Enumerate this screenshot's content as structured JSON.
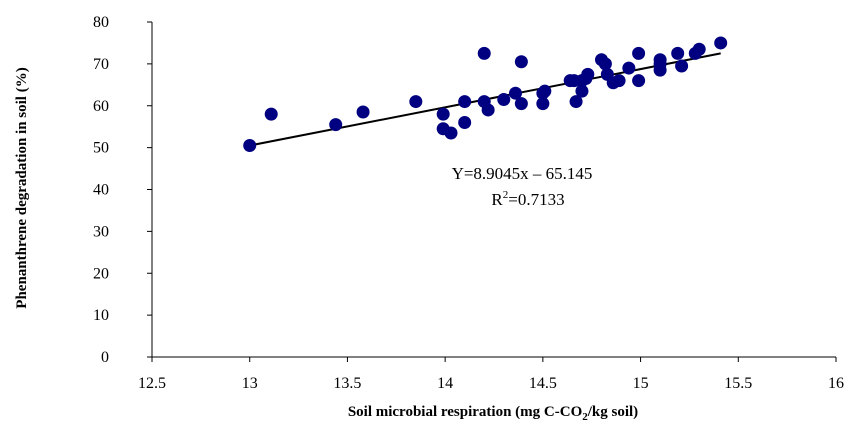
{
  "chart_data": {
    "type": "scatter",
    "title": "",
    "xlabel": "Soil microbial respiration (mg C-CO2/kg soil)",
    "xlabel_parts": {
      "before": "Soil microbial respiration (mg C-CO",
      "sub": "2",
      "after": "/kg soil)"
    },
    "ylabel": "Phenanthrene degradation in soil (%)",
    "xlim": [
      12.5,
      16
    ],
    "ylim": [
      0,
      80
    ],
    "x_ticks": [
      "12.5",
      "13",
      "13.5",
      "14",
      "14.5",
      "15",
      "15.5",
      "16"
    ],
    "y_ticks": [
      "0",
      "10",
      "20",
      "30",
      "40",
      "50",
      "60",
      "70",
      "80"
    ],
    "grid": false,
    "legend": "none",
    "marker_color": "#000080",
    "line_color": "#000000",
    "series": [
      {
        "points": [
          [
            13.0,
            50.5
          ],
          [
            13.11,
            58.0
          ],
          [
            13.44,
            55.5
          ],
          [
            13.58,
            58.5
          ],
          [
            13.85,
            61.0
          ],
          [
            13.99,
            58.0
          ],
          [
            13.99,
            54.5
          ],
          [
            14.03,
            53.5
          ],
          [
            14.1,
            61.0
          ],
          [
            14.1,
            56.0
          ],
          [
            14.2,
            72.5
          ],
          [
            14.2,
            61.0
          ],
          [
            14.22,
            59.0
          ],
          [
            14.3,
            61.5
          ],
          [
            14.36,
            63.0
          ],
          [
            14.39,
            70.5
          ],
          [
            14.39,
            60.5
          ],
          [
            14.5,
            63.0
          ],
          [
            14.5,
            60.5
          ],
          [
            14.51,
            63.5
          ],
          [
            14.64,
            66.0
          ],
          [
            14.66,
            66.0
          ],
          [
            14.67,
            61.0
          ],
          [
            14.7,
            63.5
          ],
          [
            14.7,
            66.0
          ],
          [
            14.72,
            66.5
          ],
          [
            14.73,
            67.5
          ],
          [
            14.8,
            71.0
          ],
          [
            14.82,
            70.0
          ],
          [
            14.83,
            67.5
          ],
          [
            14.86,
            65.5
          ],
          [
            14.89,
            66.0
          ],
          [
            14.94,
            69.0
          ],
          [
            14.99,
            72.5
          ],
          [
            14.99,
            66.0
          ],
          [
            15.1,
            71.0
          ],
          [
            15.1,
            68.5
          ],
          [
            15.1,
            70.0
          ],
          [
            15.19,
            72.5
          ],
          [
            15.21,
            69.5
          ],
          [
            15.28,
            72.5
          ],
          [
            15.3,
            73.5
          ],
          [
            15.41,
            75.0
          ]
        ]
      }
    ],
    "trendline": {
      "x_range": [
        13.0,
        15.41
      ],
      "y_range": [
        50.5,
        72.5
      ]
    },
    "annotation": {
      "equation": "Y=8.9045x – 65.145",
      "r2_prefix": "R",
      "r2_sup": "2",
      "r2_suffix": "=0.7133"
    }
  }
}
